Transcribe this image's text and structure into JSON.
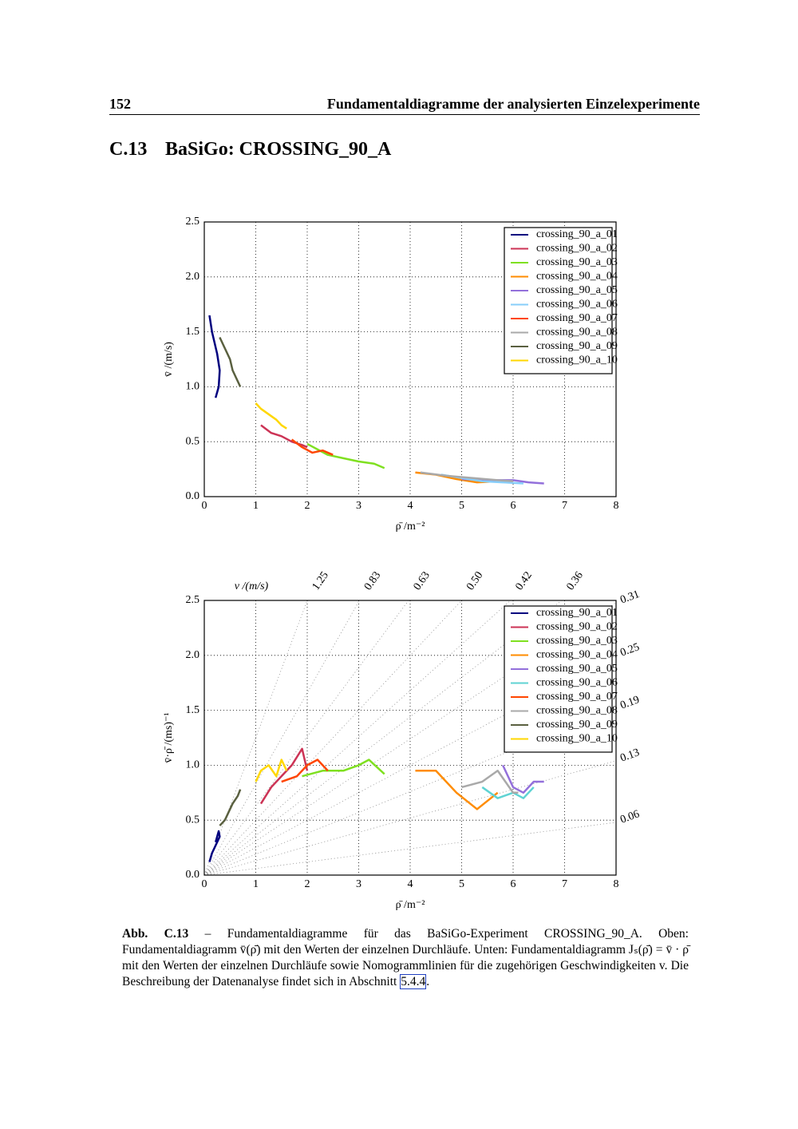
{
  "header": {
    "page": "152",
    "title": "Fundamentaldiagramme der analysierten Einzelexperimente"
  },
  "section": {
    "number": "C.13",
    "title": "BaSiGo: CROSSING_90_A"
  },
  "chart_data": [
    {
      "type": "line",
      "xlabel": "ρ̄  /m⁻²",
      "ylabel": "v̄  /(m/s)",
      "xlim": [
        0,
        8
      ],
      "ylim": [
        0,
        2.5
      ],
      "xticks": [
        0,
        1,
        2,
        3,
        4,
        5,
        6,
        7,
        8
      ],
      "yticks": [
        {
          "value": 0,
          "label": "0.0"
        },
        {
          "value": 0.5,
          "label": "0.5"
        },
        {
          "value": 1,
          "label": "1.0"
        },
        {
          "value": 1.5,
          "label": "1.5"
        },
        {
          "value": 2,
          "label": "2.0"
        },
        {
          "value": 2.5,
          "label": "2.5"
        }
      ],
      "grid": true,
      "legend": "upper right",
      "series": [
        {
          "name": "crossing_90_a_01",
          "color": "#00007f",
          "x": [
            0.1,
            0.15,
            0.2,
            0.25,
            0.3,
            0.28,
            0.22
          ],
          "values": [
            1.65,
            1.5,
            1.4,
            1.3,
            1.15,
            1.0,
            0.9
          ]
        },
        {
          "name": "crossing_90_a_02",
          "color": "#cc3355",
          "x": [
            1.1,
            1.3,
            1.5,
            1.7,
            1.9,
            2.0
          ],
          "values": [
            0.65,
            0.58,
            0.55,
            0.5,
            0.47,
            0.45
          ]
        },
        {
          "name": "crossing_90_a_03",
          "color": "#7fe020",
          "x": [
            2.0,
            2.4,
            2.7,
            3.0,
            3.3,
            3.5
          ],
          "values": [
            0.48,
            0.38,
            0.35,
            0.32,
            0.3,
            0.26
          ]
        },
        {
          "name": "crossing_90_a_04",
          "color": "#ff8c00",
          "x": [
            4.1,
            4.5,
            4.9,
            5.3,
            5.7
          ],
          "values": [
            0.22,
            0.2,
            0.16,
            0.13,
            0.14
          ]
        },
        {
          "name": "crossing_90_a_05",
          "color": "#9370db",
          "x": [
            5.0,
            5.5,
            6.0,
            6.3,
            6.6
          ],
          "values": [
            0.16,
            0.15,
            0.15,
            0.13,
            0.12
          ]
        },
        {
          "name": "crossing_90_a_06",
          "color": "#87cefa",
          "x": [
            4.6,
            5.0,
            5.4,
            5.8,
            6.2
          ],
          "values": [
            0.2,
            0.17,
            0.14,
            0.13,
            0.12
          ]
        },
        {
          "name": "crossing_90_a_07",
          "color": "#ff4500",
          "x": [
            1.7,
            1.9,
            2.1,
            2.3,
            2.5
          ],
          "values": [
            0.52,
            0.45,
            0.4,
            0.42,
            0.38
          ]
        },
        {
          "name": "crossing_90_a_08",
          "color": "#a9a9a9",
          "x": [
            4.2,
            4.7,
            5.2,
            5.7,
            6.0
          ],
          "values": [
            0.22,
            0.19,
            0.17,
            0.15,
            0.14
          ]
        },
        {
          "name": "crossing_90_a_09",
          "color": "#5a6040",
          "x": [
            0.3,
            0.4,
            0.5,
            0.55,
            0.65,
            0.7
          ],
          "values": [
            1.45,
            1.35,
            1.25,
            1.15,
            1.05,
            1.0
          ]
        },
        {
          "name": "crossing_90_a_10",
          "color": "#ffd700",
          "x": [
            1.0,
            1.1,
            1.25,
            1.4,
            1.5,
            1.6
          ],
          "values": [
            0.85,
            0.8,
            0.75,
            0.7,
            0.65,
            0.62
          ]
        }
      ]
    },
    {
      "type": "line",
      "xlabel": "ρ̄  /m⁻²",
      "ylabel": "v̄·ρ̄  /(ms)⁻¹",
      "nomogram_label": "v  /(m/s)",
      "nomograms": [
        1.25,
        0.83,
        0.63,
        {
          "value": 0.5,
          "label": "0.50"
        },
        0.42,
        0.36,
        0.31,
        0.25,
        0.19,
        0.13,
        0.06
      ],
      "xlim": [
        0,
        8
      ],
      "ylim": [
        0,
        2.5
      ],
      "xticks": [
        0,
        1,
        2,
        3,
        4,
        5,
        6,
        7,
        8
      ],
      "yticks": [
        {
          "value": 0,
          "label": "0.0"
        },
        {
          "value": 0.5,
          "label": "0.5"
        },
        {
          "value": 1,
          "label": "1.0"
        },
        {
          "value": 1.5,
          "label": "1.5"
        },
        {
          "value": 2,
          "label": "2.0"
        },
        {
          "value": 2.5,
          "label": "2.5"
        }
      ],
      "grid": true,
      "legend": "upper right",
      "series": [
        {
          "name": "crossing_90_a_01",
          "color": "#00007f",
          "x": [
            0.1,
            0.15,
            0.2,
            0.25,
            0.3,
            0.28,
            0.22
          ],
          "values": [
            0.12,
            0.2,
            0.25,
            0.3,
            0.35,
            0.4,
            0.3
          ]
        },
        {
          "name": "crossing_90_a_02",
          "color": "#cc3355",
          "x": [
            1.1,
            1.3,
            1.5,
            1.7,
            1.9,
            2.0
          ],
          "values": [
            0.65,
            0.8,
            0.9,
            1.0,
            1.15,
            0.95
          ]
        },
        {
          "name": "crossing_90_a_03",
          "color": "#7fe020",
          "x": [
            1.9,
            2.3,
            2.7,
            3.0,
            3.2,
            3.5
          ],
          "values": [
            0.9,
            0.95,
            0.95,
            1.0,
            1.05,
            0.92
          ]
        },
        {
          "name": "crossing_90_a_04",
          "color": "#ff8c00",
          "x": [
            4.1,
            4.5,
            4.9,
            5.3,
            5.7
          ],
          "values": [
            0.95,
            0.95,
            0.75,
            0.6,
            0.75
          ]
        },
        {
          "name": "crossing_90_a_05",
          "color": "#9370db",
          "x": [
            5.8,
            6.0,
            6.2,
            6.4,
            6.6
          ],
          "values": [
            1.0,
            0.8,
            0.75,
            0.85,
            0.85
          ]
        },
        {
          "name": "crossing_90_a_06",
          "color": "#5fd3d3",
          "x": [
            5.4,
            5.7,
            6.0,
            6.2,
            6.4
          ],
          "values": [
            0.8,
            0.7,
            0.75,
            0.7,
            0.8
          ]
        },
        {
          "name": "crossing_90_a_07",
          "color": "#ff4500",
          "x": [
            1.5,
            1.8,
            2.0,
            2.2,
            2.4
          ],
          "values": [
            0.85,
            0.9,
            1.0,
            1.05,
            0.95
          ]
        },
        {
          "name": "crossing_90_a_08",
          "color": "#a9a9a9",
          "x": [
            5.0,
            5.4,
            5.7,
            6.0,
            6.1
          ],
          "values": [
            0.8,
            0.85,
            0.95,
            0.75,
            0.75
          ]
        },
        {
          "name": "crossing_90_a_09",
          "color": "#5a6040",
          "x": [
            0.3,
            0.4,
            0.5,
            0.55,
            0.65,
            0.7
          ],
          "values": [
            0.45,
            0.5,
            0.6,
            0.65,
            0.72,
            0.78
          ]
        },
        {
          "name": "crossing_90_a_10",
          "color": "#ffd700",
          "x": [
            1.0,
            1.1,
            1.25,
            1.4,
            1.5,
            1.6
          ],
          "values": [
            0.85,
            0.95,
            1.0,
            0.9,
            1.05,
            0.95
          ]
        }
      ]
    }
  ],
  "caption": {
    "label": "Abb. C.13",
    "text": "– Fundamentaldiagramme für das BaSiGo-Experiment CROSSING_90_A. Oben: Fundamentaldiagramm v̄(ρ̄) mit den Werten der einzelnen Durchläufe. Unten: Fundamentaldiagramm Jₛ(ρ̄) = v̄ · ρ̄ mit den Werten der einzelnen Durchläufe sowie Nomogrammlinien für die zugehörigen Geschwindigkeiten v. Die Beschreibung der Datenanalyse findet sich in Abschnitt",
    "link": "5.4.4",
    "end": "."
  }
}
